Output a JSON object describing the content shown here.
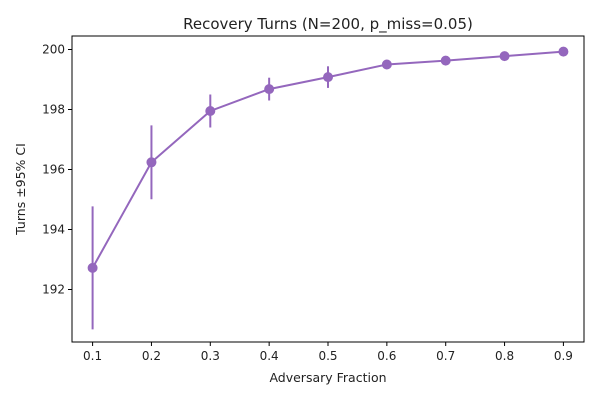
{
  "chart_data": {
    "type": "line",
    "title": "Recovery Turns (N=200, p_miss=0.05)",
    "xlabel": "Adversary Fraction",
    "ylabel": "Turns ±95% CI",
    "xlim": [
      0.065,
      0.935
    ],
    "ylim": [
      190.25,
      200.45
    ],
    "x_ticks": [
      0.1,
      0.2,
      0.3,
      0.4,
      0.5,
      0.6,
      0.7,
      0.8,
      0.9
    ],
    "y_ticks": [
      192,
      194,
      196,
      198,
      200
    ],
    "x_tick_labels": [
      "0.1",
      "0.2",
      "0.3",
      "0.4",
      "0.5",
      "0.6",
      "0.7",
      "0.8",
      "0.9"
    ],
    "y_tick_labels": [
      "192",
      "194",
      "196",
      "198",
      "200"
    ],
    "grid": false,
    "legend": "none",
    "series": [
      {
        "color": "#9467bd",
        "x": [
          0.1,
          0.2,
          0.3,
          0.4,
          0.5,
          0.6,
          0.7,
          0.8,
          0.9
        ],
        "y": [
          192.72,
          196.24,
          197.95,
          198.68,
          199.08,
          199.5,
          199.63,
          199.78,
          199.93
        ],
        "ci": [
          2.05,
          1.23,
          0.55,
          0.38,
          0.36,
          0.13,
          0.08,
          0.07,
          0.05
        ]
      }
    ]
  }
}
